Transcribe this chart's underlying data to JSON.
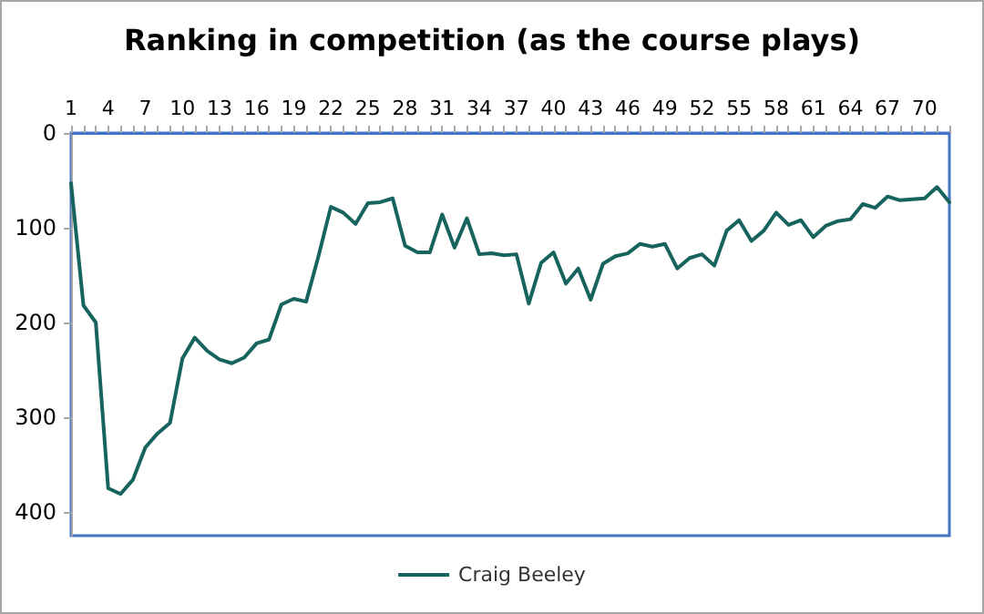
{
  "chart_data": {
    "type": "line",
    "title": "Ranking in competition (as the course plays)",
    "categories": [
      "1",
      null,
      null,
      "4",
      null,
      null,
      "7",
      null,
      null,
      "10",
      null,
      null,
      "13",
      null,
      null,
      "16",
      null,
      null,
      "19",
      null,
      null,
      "22",
      null,
      null,
      "25",
      null,
      null,
      "28",
      null,
      null,
      "31",
      null,
      null,
      "34",
      null,
      null,
      "37",
      null,
      null,
      "40",
      null,
      null,
      "43",
      null,
      null,
      "46",
      null,
      null,
      "49",
      null,
      null,
      "52",
      null,
      null,
      "55",
      null,
      null,
      "58",
      null,
      null,
      "61",
      null,
      null,
      "64",
      null,
      null,
      "67",
      null,
      null,
      "70",
      null,
      null
    ],
    "series": [
      {
        "name": "Craig Beeley",
        "color": "#17635e",
        "values": [
          53,
          182,
          200,
          375,
          381,
          366,
          332,
          317,
          306,
          238,
          216,
          230,
          239,
          243,
          237,
          222,
          218,
          181,
          175,
          178,
          130,
          78,
          84,
          96,
          74,
          73,
          69,
          119,
          126,
          126,
          86,
          121,
          90,
          128,
          127,
          129,
          128,
          180,
          137,
          126,
          159,
          143,
          176,
          138,
          130,
          127,
          117,
          120,
          117,
          143,
          132,
          128,
          140,
          103,
          92,
          114,
          103,
          84,
          97,
          92,
          110,
          98,
          93,
          91,
          75,
          79,
          67,
          71,
          70,
          69,
          57,
          73
        ]
      }
    ],
    "ylim": [
      425,
      0
    ],
    "yticks": [
      0,
      100,
      200,
      300,
      400
    ],
    "grid": false,
    "legend": "bottom",
    "marker": "none",
    "line_style": "solid"
  }
}
